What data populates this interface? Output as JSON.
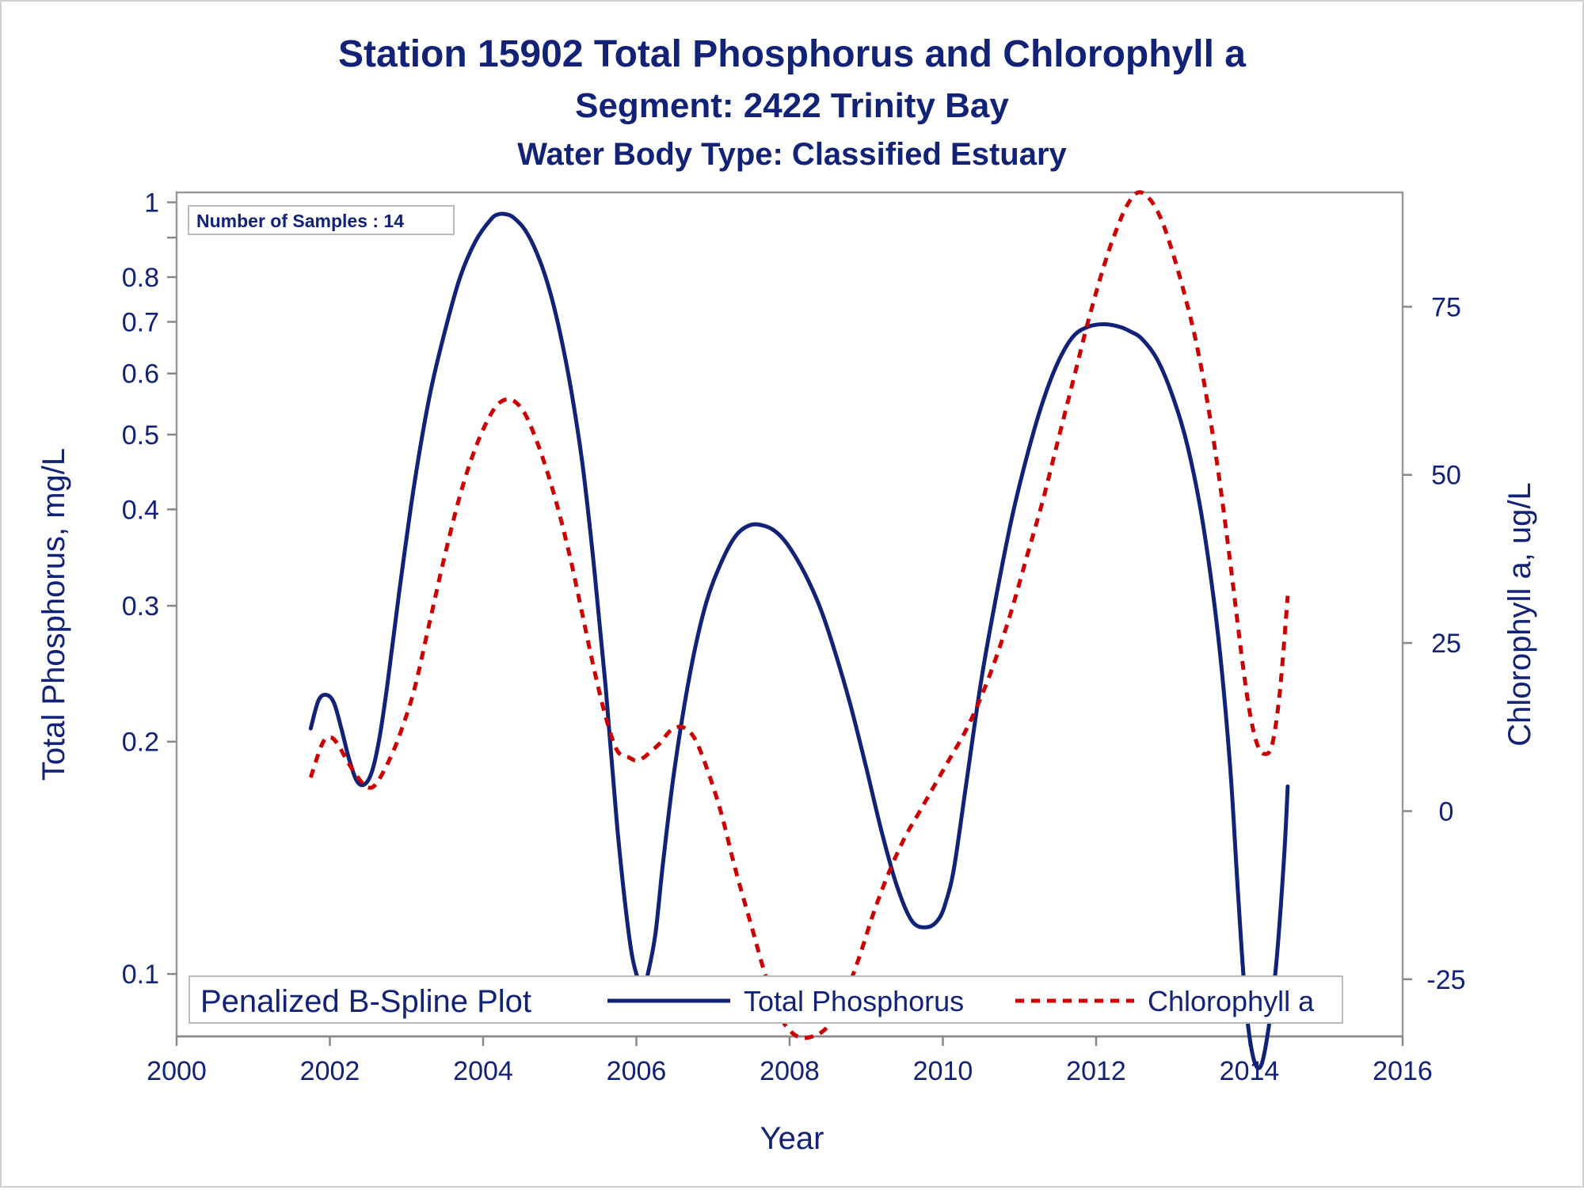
{
  "chart_data": {
    "type": "line",
    "title": "Station 15902  Total Phosphorus and Chlorophyll a",
    "subtitle1": "Segment: 2422  Trinity Bay",
    "subtitle2": "Water Body Type: Classified Estuary",
    "inset_label": "Number of Samples : 14",
    "xlabel": "Year",
    "ylabel_left": "Total Phosphorus, mg/L",
    "ylabel_right": "Chlorophyll a, ug/L",
    "xlim": [
      2000,
      2016
    ],
    "xticks": [
      2000,
      2002,
      2004,
      2006,
      2008,
      2010,
      2012,
      2014,
      2016
    ],
    "y_left_scale": "log",
    "y_left_lim": [
      0.083,
      1.03
    ],
    "y_left_ticks": [
      0.1,
      0.2,
      0.3,
      0.4,
      0.5,
      0.6,
      0.7,
      0.8,
      1
    ],
    "y_right_lim": [
      -33.5,
      92
    ],
    "y_right_ticks": [
      -25,
      0,
      25,
      50,
      75
    ],
    "grid": false,
    "legend_title": "Penalized B-Spline Plot",
    "legend_position": "bottom-inside",
    "colors": {
      "phosphorus": "#112277",
      "chlorophyll": "#cc0000",
      "text": "#112277",
      "frame": "#999999"
    },
    "series": [
      {
        "name": "Total Phosphorus",
        "axis": "left",
        "style": "solid",
        "x": [
          2001.75,
          2001.85,
          2001.95,
          2002.05,
          2002.15,
          2002.25,
          2002.35,
          2002.45,
          2002.55,
          2002.65,
          2002.75,
          2002.9,
          2003.1,
          2003.3,
          2003.5,
          2003.7,
          2003.9,
          2004.1,
          2004.2,
          2004.3,
          2004.4,
          2004.55,
          2004.7,
          2004.85,
          2005.0,
          2005.15,
          2005.3,
          2005.45,
          2005.6,
          2005.75,
          2005.9,
          2006.0,
          2006.1,
          2006.15,
          2006.25,
          2006.35,
          2006.5,
          2006.7,
          2006.9,
          2007.1,
          2007.3,
          2007.5,
          2007.7,
          2007.85,
          2008.0,
          2008.2,
          2008.4,
          2008.6,
          2008.8,
          2009.0,
          2009.2,
          2009.4,
          2009.6,
          2009.8,
          2009.95,
          2010.05,
          2010.15,
          2010.3,
          2010.5,
          2010.7,
          2010.9,
          2011.1,
          2011.3,
          2011.5,
          2011.7,
          2011.9,
          2012.1,
          2012.3,
          2012.45,
          2012.6,
          2012.8,
          2013.0,
          2013.2,
          2013.4,
          2013.6,
          2013.75,
          2013.85,
          2013.95,
          2014.05,
          2014.15,
          2014.25,
          2014.35,
          2014.45,
          2014.5
        ],
        "y": [
          0.208,
          0.226,
          0.23,
          0.225,
          0.208,
          0.19,
          0.178,
          0.176,
          0.183,
          0.203,
          0.237,
          0.31,
          0.43,
          0.56,
          0.68,
          0.8,
          0.89,
          0.95,
          0.965,
          0.965,
          0.955,
          0.92,
          0.86,
          0.78,
          0.68,
          0.57,
          0.455,
          0.335,
          0.235,
          0.155,
          0.113,
          0.1,
          0.097,
          0.1,
          0.113,
          0.14,
          0.185,
          0.245,
          0.3,
          0.34,
          0.37,
          0.382,
          0.38,
          0.372,
          0.357,
          0.33,
          0.298,
          0.26,
          0.222,
          0.185,
          0.153,
          0.13,
          0.117,
          0.115,
          0.118,
          0.125,
          0.138,
          0.175,
          0.24,
          0.31,
          0.39,
          0.47,
          0.55,
          0.62,
          0.67,
          0.69,
          0.695,
          0.69,
          0.68,
          0.665,
          0.625,
          0.56,
          0.48,
          0.38,
          0.27,
          0.185,
          0.128,
          0.092,
          0.078,
          0.076,
          0.085,
          0.103,
          0.14,
          0.175
        ]
      },
      {
        "name": "Chlorophyll a",
        "axis": "right",
        "style": "dashed",
        "x": [
          2001.75,
          2001.9,
          2002.0,
          2002.1,
          2002.25,
          2002.4,
          2002.5,
          2002.6,
          2002.75,
          2002.9,
          2003.1,
          2003.3,
          2003.5,
          2003.7,
          2003.9,
          2004.1,
          2004.25,
          2004.4,
          2004.55,
          2004.7,
          2004.85,
          2005.0,
          2005.15,
          2005.3,
          2005.45,
          2005.6,
          2005.75,
          2005.9,
          2006.0,
          2006.1,
          2006.2,
          2006.3,
          2006.45,
          2006.6,
          2006.75,
          2006.9,
          2007.1,
          2007.3,
          2007.5,
          2007.7,
          2007.9,
          2008.1,
          2008.3,
          2008.5,
          2008.7,
          2008.9,
          2009.1,
          2009.3,
          2009.5,
          2009.7,
          2009.9,
          2010.1,
          2010.3,
          2010.5,
          2010.7,
          2010.9,
          2011.1,
          2011.3,
          2011.5,
          2011.7,
          2011.9,
          2012.1,
          2012.25,
          2012.4,
          2012.55,
          2012.7,
          2012.85,
          2013.0,
          2013.15,
          2013.3,
          2013.45,
          2013.6,
          2013.75,
          2013.9,
          2014.0,
          2014.1,
          2014.2,
          2014.3,
          2014.4,
          2014.5
        ],
        "y": [
          5,
          10,
          11,
          10,
          7,
          4.5,
          3.5,
          4,
          7,
          11,
          18,
          28,
          38,
          47,
          54,
          59,
          61,
          61,
          59,
          55,
          50,
          44,
          37,
          29,
          21,
          14,
          9,
          8,
          7.5,
          8,
          9,
          10,
          12,
          12.5,
          11,
          7,
          0,
          -9,
          -17,
          -25,
          -31,
          -33.5,
          -33.5,
          -32,
          -28,
          -22,
          -15,
          -9,
          -4,
          0,
          4,
          8,
          12,
          17,
          23,
          30,
          38,
          46,
          55,
          64,
          73,
          81,
          86,
          90,
          92,
          91,
          88,
          83,
          77,
          70,
          61,
          50,
          37,
          23,
          15,
          10,
          8.5,
          10,
          18,
          32
        ]
      }
    ]
  }
}
